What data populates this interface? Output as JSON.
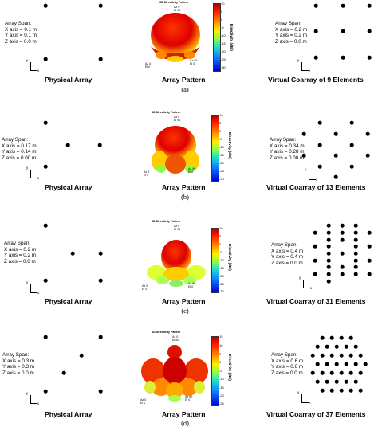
{
  "common": {
    "physical_heading": "Physical Array",
    "pattern_heading": "Array Pattern",
    "pattern_title": "3D Directivity Pattern",
    "colorbar_label": "Directivity (dBi)",
    "axis_y": "y",
    "axis_x": "x",
    "az_el_top": "Az 0\nEl 90",
    "az_el_left": "Az 0\nEl 0",
    "az_el_right": "Az 90\nEl 0",
    "z_tag": "z",
    "colors": {
      "dot": "#000000",
      "high": "#d40000",
      "mid": "#ffee00",
      "low": "#0000cc"
    }
  },
  "panels": [
    {
      "label": "(a)",
      "span_physical": "Array Span:\nX axis = 0.1 m\nY axis = 0.1 m\nZ axis = 0.0 m",
      "span_virtual": "Array Span:\nX axis = 0.2 m\nY axis = 0.2 m\nZ axis = 0.0 m",
      "virtual_heading": "Virtual Coarray of 9 Elements",
      "colorbar_ticks": [
        "10",
        "5",
        "0",
        "-5",
        "-10",
        "-15",
        "-20",
        "-25",
        "-30"
      ]
    },
    {
      "label": "(b)",
      "span_physical": "Array Span:\nX axis = 0.17 m\nY axis = 0.14 m\nZ axis = 0.00 m",
      "span_virtual": "Array Span:\nX axis = 0.34 m\nY axis = 0.28 m\nZ axis = 0.00 m",
      "virtual_heading": "Virtual Coarray of 13 Elements",
      "colorbar_ticks": [
        "10",
        "5",
        "0",
        "-5",
        "-10",
        "-15",
        "-20",
        "-25",
        "-30"
      ]
    },
    {
      "label": "(c)",
      "span_physical": "Array Span:\nX axis = 0.2 m\nY axis = 0.2 m\nZ axis = 0.0 m",
      "span_virtual": "Array Span:\nX axis = 0.4 m\nY axis = 0.4 m\nZ axis = 0.0 m",
      "virtual_heading": "Virtual Coarray of 31 Elements",
      "colorbar_ticks": [
        "10",
        "5",
        "0",
        "-5",
        "-10",
        "-15",
        "-20",
        "-25",
        "-30"
      ]
    },
    {
      "label": "(d)",
      "span_physical": "Array Span:\nX axis = 0.3 m\nY axis = 0.3 m\nZ axis = 0.0 m",
      "span_virtual": "Array Span:\nX axis = 0.6 m\nY axis = 0.6 m\nZ axis = 0.0 m",
      "virtual_heading": "Virtual Coarray of 37 Elements",
      "colorbar_ticks": [
        "15",
        "10",
        "5",
        "0",
        "-5",
        "-10",
        "-15",
        "-20",
        "-25"
      ]
    }
  ]
}
